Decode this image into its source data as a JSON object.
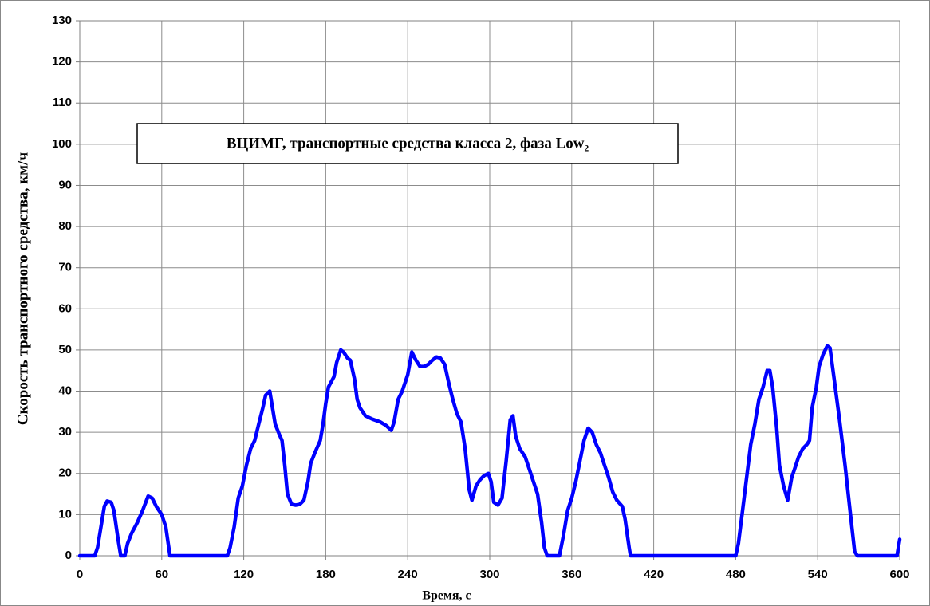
{
  "chart_data": {
    "type": "line",
    "title": "ВЦИМГ, транспортные средства класса 2, фаза Low₂",
    "x_label": "Время, с",
    "y_label": "Скорость транспортного средства, км/ч",
    "color": "#0000ff",
    "grid": true,
    "xlim": [
      0,
      600
    ],
    "ylim": [
      0,
      130
    ],
    "xticks": [
      0,
      60,
      120,
      180,
      240,
      300,
      360,
      420,
      480,
      540,
      600
    ],
    "yticks": [
      0,
      10,
      20,
      30,
      40,
      50,
      60,
      70,
      80,
      90,
      100,
      110,
      120,
      130
    ],
    "x": [
      0,
      11,
      13,
      16,
      18,
      20,
      23,
      25,
      28,
      30,
      33,
      35,
      38,
      42,
      46,
      50,
      53,
      56,
      60,
      63,
      66,
      108,
      110,
      113,
      116,
      119,
      122,
      125,
      128,
      131,
      134,
      136,
      139,
      141,
      143,
      146,
      148,
      150,
      152,
      155,
      158,
      161,
      164,
      167,
      169,
      172,
      176,
      178,
      180,
      182,
      186,
      188,
      191,
      193,
      196,
      198,
      201,
      203,
      205,
      209,
      214,
      220,
      224,
      228,
      230,
      233,
      236,
      240,
      243,
      246,
      249,
      252,
      255,
      258,
      261,
      264,
      267,
      270,
      273,
      276,
      279,
      282,
      285,
      287,
      290,
      293,
      296,
      299,
      301,
      303,
      306,
      309,
      312,
      315,
      317,
      319,
      322,
      326,
      329,
      332,
      335,
      338,
      340,
      342,
      351,
      354,
      357,
      360,
      363,
      366,
      369,
      372,
      375,
      378,
      381,
      384,
      387,
      390,
      393,
      397,
      399,
      402,
      403,
      480,
      482,
      485,
      488,
      491,
      494,
      497,
      500,
      503,
      505,
      507,
      510,
      512,
      515,
      518,
      521,
      523,
      526,
      529,
      532,
      534,
      536,
      539,
      541,
      544,
      547,
      549,
      552,
      556,
      560,
      564,
      567,
      569,
      598,
      600
    ],
    "values": [
      0,
      0,
      2,
      8,
      12,
      13.3,
      13,
      11,
      4,
      0,
      0,
      3,
      5.5,
      8,
      11,
      14.5,
      14,
      12,
      10,
      7,
      0,
      0,
      2,
      7,
      14,
      17,
      22,
      26,
      28,
      32,
      36,
      39,
      40,
      36,
      32,
      29.5,
      28,
      22,
      15,
      12.5,
      12.3,
      12.5,
      13.5,
      18,
      22.5,
      25,
      28,
      32,
      37,
      41,
      43.5,
      47,
      50,
      49.5,
      48,
      47.5,
      43,
      38,
      36,
      34,
      33.2,
      32.5,
      31.7,
      30.5,
      32.5,
      38,
      40,
      44,
      49.5,
      47.5,
      46,
      46,
      46.5,
      47.5,
      48.3,
      48,
      46.5,
      42,
      38,
      34.5,
      32.5,
      26,
      16,
      13.5,
      17,
      18.5,
      19.5,
      20,
      18,
      13,
      12.3,
      14,
      23,
      33,
      34,
      29,
      26,
      24,
      21,
      18,
      15,
      8,
      2,
      0,
      0,
      5,
      11,
      14,
      18,
      23,
      28,
      31,
      30,
      27,
      25,
      22,
      19,
      15.5,
      13.5,
      12,
      9,
      2,
      0,
      0,
      3,
      11,
      19,
      27,
      32,
      38,
      41,
      45,
      45,
      41,
      31,
      22,
      17,
      13.5,
      19,
      21,
      24,
      26,
      27,
      28,
      36,
      41,
      46,
      49,
      51,
      50.5,
      43,
      33,
      22,
      10,
      1,
      0,
      0,
      4
    ]
  }
}
